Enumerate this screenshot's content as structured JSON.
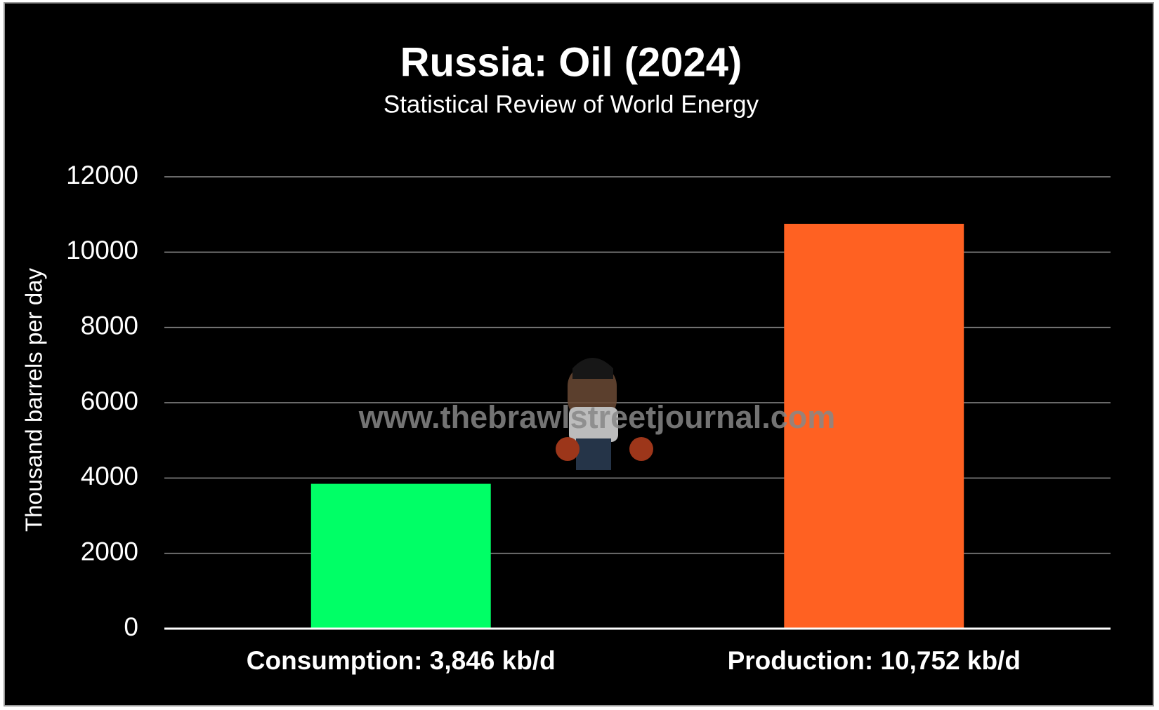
{
  "chart_data": {
    "type": "bar",
    "title": "Russia: Oil (2024)",
    "subtitle": "Statistical Review of World Energy",
    "y_label": "Thousand barrels per day",
    "watermark": "www.thebrawlstreetjournal.com",
    "categories": [
      "Consumption: 3,846 kb/d",
      "Production: 10,752 kb/d"
    ],
    "values": [
      3846,
      10752
    ],
    "colors": [
      "#00ff66",
      "#ff6122"
    ],
    "ylim": [
      0,
      12000
    ],
    "yticks": [
      0,
      2000,
      4000,
      6000,
      8000,
      10000,
      12000
    ],
    "grid": true
  }
}
